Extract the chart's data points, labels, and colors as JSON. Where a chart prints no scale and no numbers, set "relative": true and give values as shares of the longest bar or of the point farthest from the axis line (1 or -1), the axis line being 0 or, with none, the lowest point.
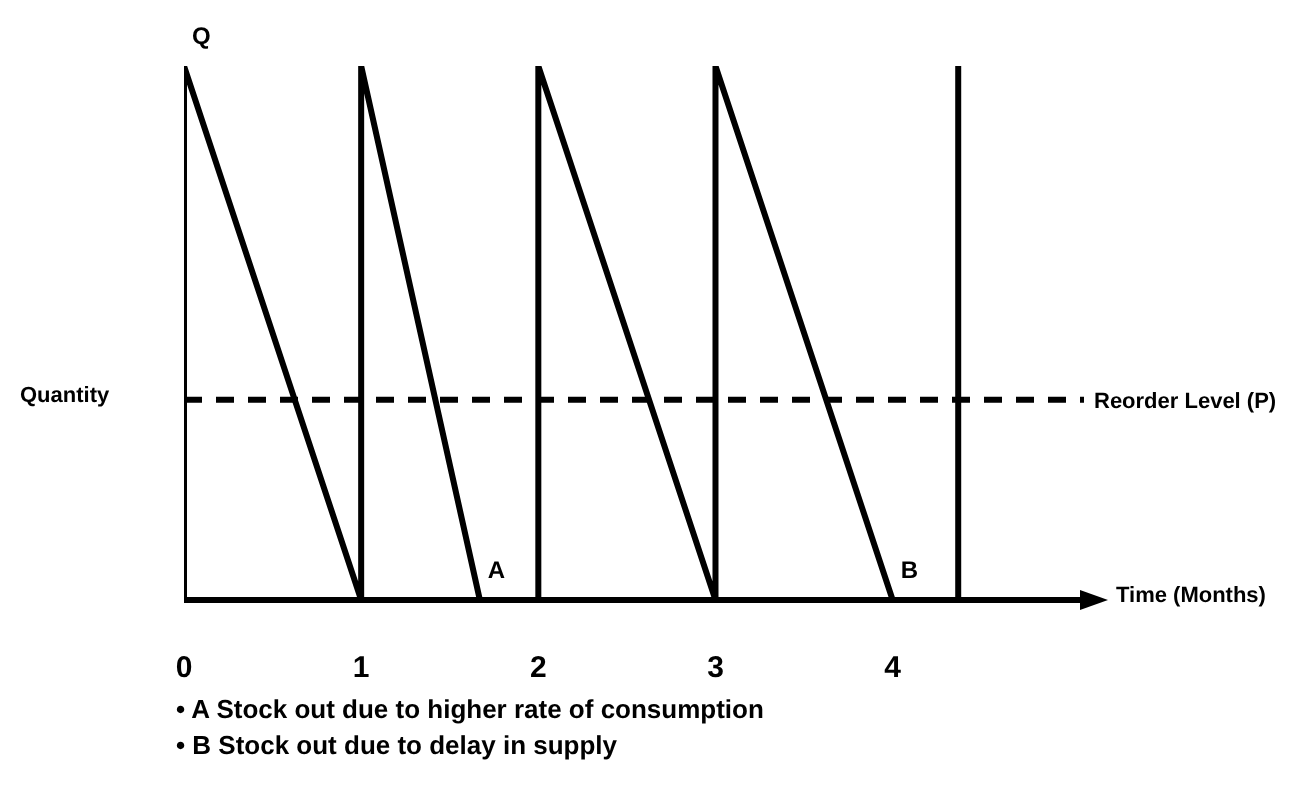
{
  "chart_data": {
    "type": "line",
    "relative": true,
    "xlabel": "Time (Months)",
    "ylabel": "Quantity",
    "xlim": [
      0,
      5.08
    ],
    "xticks": [
      0,
      1,
      2,
      3,
      4
    ],
    "tick_labels": "x",
    "marker": "none",
    "line_style": "solid",
    "series": [
      {
        "color": "#000000",
        "x": [
          0,
          0,
          1,
          1,
          1.67,
          2,
          2,
          3,
          3,
          4,
          4.37,
          4.37
        ],
        "values": [
          0,
          1,
          0,
          1,
          0,
          0,
          1,
          0,
          1,
          0,
          0,
          1
        ]
      }
    ],
    "ref_lines": [
      {
        "axis": "y",
        "value": 0.375,
        "label": "Reorder Level (P)",
        "color": "#000000",
        "line_style": "dashed"
      }
    ],
    "annotations": [
      {
        "text": "Q",
        "x": 0,
        "y": 1
      },
      {
        "text": "A",
        "x": 1.67,
        "y": 0
      },
      {
        "text": "B",
        "x": 4,
        "y": 0
      },
      "• A Stock out due to higher rate of consumption",
      "• B Stock out due to delay in supply"
    ]
  }
}
